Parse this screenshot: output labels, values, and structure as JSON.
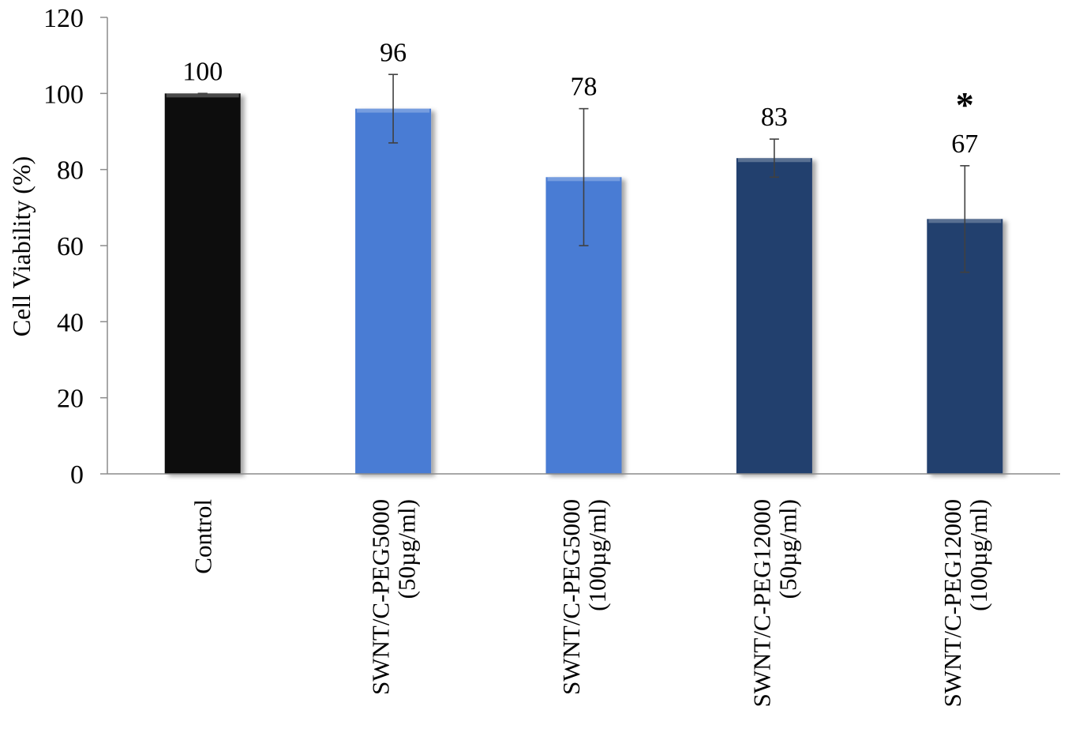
{
  "chart_data": {
    "type": "bar",
    "title": "",
    "xlabel": "",
    "ylabel": "Cell Viability (%)",
    "ylim": [
      0,
      120
    ],
    "yticks": [
      0,
      20,
      40,
      60,
      80,
      100,
      120
    ],
    "grid": false,
    "legend": "none",
    "categories": [
      [
        "Control"
      ],
      [
        "SWNT/C-PEG5000",
        "(50µg/ml)"
      ],
      [
        "SWNT/C-PEG5000",
        "(100µg/ml)"
      ],
      [
        "SWNT/C-PEG12000",
        "(50µg/ml)"
      ],
      [
        "SWNT/C-PEG12000",
        "(100µg/ml)"
      ]
    ],
    "values": [
      100,
      96,
      78,
      83,
      67
    ],
    "value_labels": [
      "100",
      "96",
      "78",
      "83",
      "67"
    ],
    "error_low": [
      100,
      87,
      60,
      78,
      53
    ],
    "error_high": [
      100,
      105,
      96,
      88,
      81
    ],
    "colors": [
      "#0d0d0d",
      "#4a7bd4",
      "#4a7bd4",
      "#233f6e",
      "#233f6e"
    ],
    "significance": [
      "",
      "",
      "",
      "",
      "*"
    ]
  }
}
